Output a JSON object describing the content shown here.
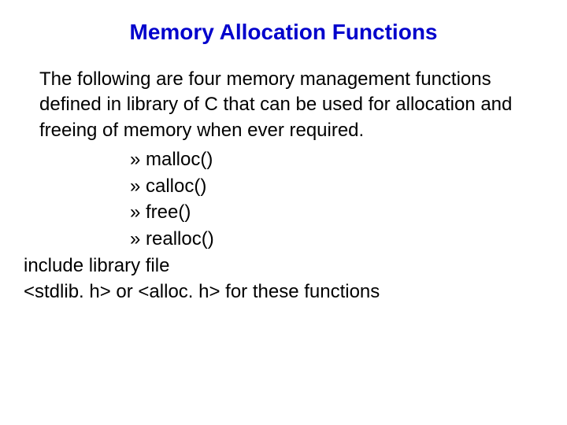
{
  "title": {
    "text": "Memory Allocation Functions",
    "color": "#0000cc",
    "fontsize": 28
  },
  "body": {
    "color": "#000000",
    "fontsize": 24,
    "intro": "The following are four memory management functions defined in library of C that can be used for allocation and freeing of memory when ever required.",
    "functions": [
      "malloc()",
      "calloc()",
      "free()",
      "realloc()"
    ],
    "footer1": "include library file",
    "footer2": "<stdlib. h>  or <alloc. h> for these functions"
  }
}
